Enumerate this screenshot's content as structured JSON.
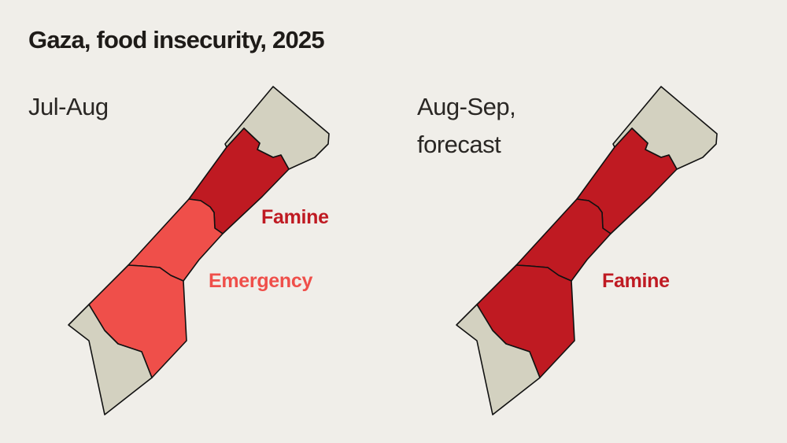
{
  "title": "Gaza, food insecurity, 2025",
  "colors": {
    "famine": "#bf1a22",
    "emergency": "#ef4f4a",
    "no_data": "#d3d1c0",
    "background": "#f0eee9"
  },
  "maps": [
    {
      "period": "Jul-Aug",
      "regions": {
        "north_gaza": "no_data",
        "gaza_city": "famine",
        "deir_al_balah": "emergency",
        "khan_yunis": "emergency",
        "rafah": "no_data"
      },
      "labels": [
        {
          "text": "Famine",
          "phase": "famine"
        },
        {
          "text": "Emergency",
          "phase": "emergency"
        }
      ]
    },
    {
      "period_line1": "Aug-Sep,",
      "period_line2": "forecast",
      "regions": {
        "north_gaza": "no_data",
        "gaza_city": "famine",
        "deir_al_balah": "famine",
        "khan_yunis": "famine",
        "rafah": "no_data"
      },
      "labels": [
        {
          "text": "Famine",
          "phase": "famine"
        }
      ]
    }
  ]
}
